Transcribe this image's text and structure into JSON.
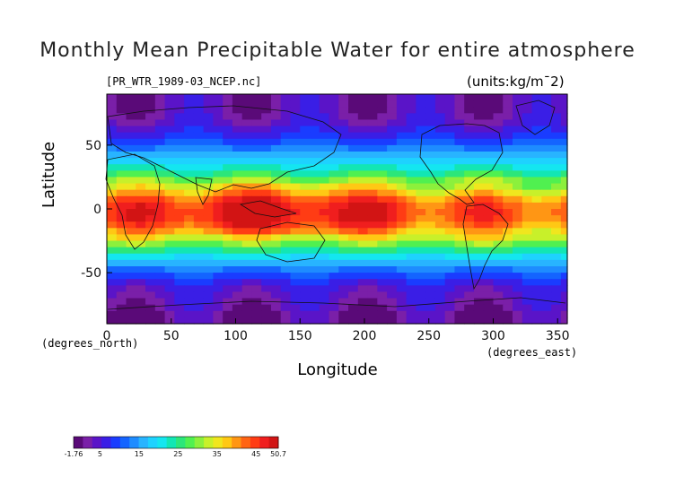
{
  "title": "Monthly Mean Precipitable Water for entire atmosphere",
  "file_label": "[PR_WTR_1989-03_NCEP.nc]",
  "units_label": "(units:kg/m¯2)",
  "axes": {
    "x_label": "Longitude",
    "x_unit": "(degrees_east)",
    "y_label": "Latitude",
    "y_unit": "(degrees_north)",
    "x_ticks": [
      "0",
      "50",
      "100",
      "150",
      "200",
      "250",
      "300",
      "350"
    ],
    "y_ticks": [
      "50",
      "0",
      "-50"
    ],
    "x_range": [
      0,
      357.5
    ],
    "y_range": [
      -90,
      90
    ]
  },
  "colorbar": {
    "tick_labels": [
      "-1.76",
      "5",
      "15",
      "25",
      "35",
      "45",
      "50.7"
    ],
    "min": -1.76,
    "max": 50.7,
    "colors": [
      "#5a0a78",
      "#7a1fa8",
      "#5a14c8",
      "#3a1ee6",
      "#1a3cff",
      "#1464ff",
      "#1e8cff",
      "#28b4ff",
      "#1ed2ff",
      "#14e6f0",
      "#12e6b4",
      "#2ce67a",
      "#50f050",
      "#8cf03c",
      "#c8f02a",
      "#f0e61e",
      "#ffc814",
      "#ff9614",
      "#ff6414",
      "#ff3c14",
      "#f01e1e",
      "#d21414"
    ]
  },
  "chart_data": {
    "type": "heatmap",
    "title": "Monthly Mean Precipitable Water for entire atmosphere",
    "xlabel": "Longitude",
    "ylabel": "Latitude",
    "xlim": [
      0,
      357.5
    ],
    "ylim": [
      -90,
      90
    ],
    "zlim": [
      -1.76,
      50.7
    ],
    "units": "kg/m¯2",
    "zonal_profile_lat": [
      85,
      75,
      65,
      55,
      45,
      35,
      25,
      15,
      5,
      -5,
      -15,
      -25,
      -35,
      -45,
      -55,
      -65,
      -75,
      -85
    ],
    "zonal_profile_value": [
      2,
      3,
      5,
      9,
      14,
      20,
      28,
      36,
      45,
      47,
      42,
      32,
      22,
      14,
      8,
      4,
      3,
      1
    ]
  }
}
